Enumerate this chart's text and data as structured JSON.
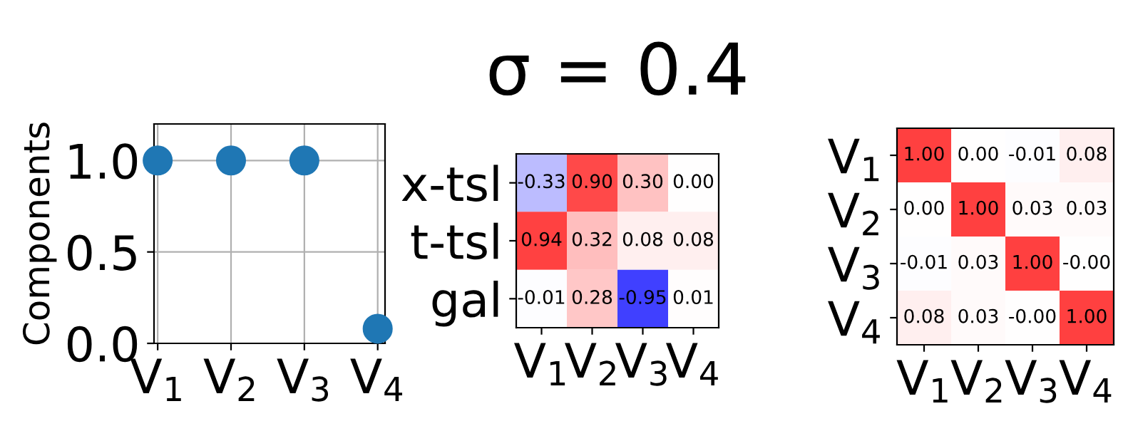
{
  "chart_data": [
    {
      "type": "scatter",
      "ylabel": "Components",
      "categories": [
        "V$_{1}$",
        "V$_{2}$",
        "V$_{3}$",
        "V$_{4}$"
      ],
      "values": [
        1.0,
        1.0,
        1.0,
        0.08
      ],
      "color": "#1f77b4",
      "marker": "circle",
      "ylim": [
        0,
        1.2
      ],
      "yticks": [
        {
          "value": 0,
          "label": "0.0"
        },
        {
          "value": 0.5,
          "label": "0.5"
        },
        {
          "value": 1,
          "label": "1.0"
        }
      ],
      "grid": true
    },
    {
      "type": "heatmap",
      "title": "σ = 0.4",
      "categories": [
        "V$_{1}$",
        "V$_{2}$",
        "V$_{3}$",
        "V$_{4}$"
      ],
      "y_categories": [
        "x-tsl",
        "t-tsl",
        "gal"
      ],
      "cells": [
        [
          -0.33,
          0.9,
          0.3,
          0.0
        ],
        [
          0.94,
          0.32,
          0.08,
          0.08
        ],
        [
          -0.01,
          0.28,
          -0.95,
          0.01
        ]
      ],
      "cell_labels": [
        [
          "-0.33",
          "0.90",
          "0.30",
          "0.00"
        ],
        [
          "0.94",
          "0.32",
          "0.08",
          "0.08"
        ],
        [
          "-0.01",
          "0.28",
          "-0.95",
          "0.01"
        ]
      ]
    },
    {
      "type": "heatmap",
      "categories": [
        "V$_{1}$",
        "V$_{2}$",
        "V$_{3}$",
        "V$_{4}$"
      ],
      "y_categories": [
        "V$_{1}$",
        "V$_{2}$",
        "V$_{3}$",
        "V$_{4}$"
      ],
      "cells": [
        [
          1.0,
          0.0,
          -0.01,
          0.08
        ],
        [
          0.0,
          1.0,
          0.03,
          0.03
        ],
        [
          -0.01,
          0.03,
          1.0,
          -0.0
        ],
        [
          0.08,
          0.03,
          -0.0,
          1.0
        ]
      ],
      "cell_labels": [
        [
          "1.00",
          "0.00",
          "-0.01",
          "0.08"
        ],
        [
          "0.00",
          "1.00",
          "0.03",
          "0.03"
        ],
        [
          "-0.01",
          "0.03",
          "1.00",
          "-0.00"
        ],
        [
          "0.08",
          "0.03",
          "-0.00",
          "1.00"
        ]
      ]
    }
  ]
}
